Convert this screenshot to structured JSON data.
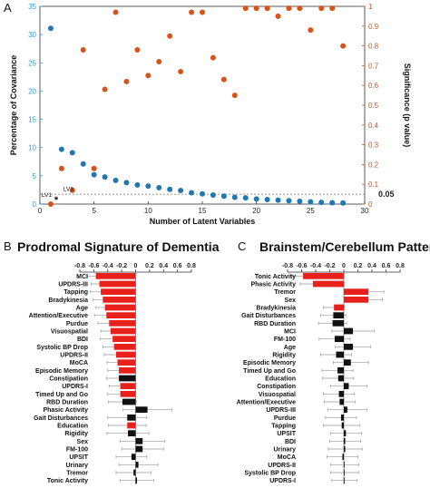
{
  "colors": {
    "blue": "#1f77b4",
    "orange": "#d95319",
    "red": "#e8211d",
    "black": "#111111",
    "orange_axis": "#d95319",
    "blue_axis": "#3a9bd9",
    "errorbar": "#9a9a9a"
  },
  "panels": {
    "a": {
      "letter": "A"
    },
    "b": {
      "letter": "B",
      "title": "Prodromal Signature of Dementia"
    },
    "c": {
      "letter": "C",
      "title": "Brainstem/Cerebellum Pattern"
    }
  },
  "chart_data": [
    {
      "id": "a",
      "type": "scatter",
      "xlabel": "Number of Latent Variables",
      "ylabel_left": "Percentage of Covariance",
      "ylabel_right": "Significance (p value)",
      "xlim": [
        0,
        30
      ],
      "ylim_left": [
        0,
        35
      ],
      "ylim_right": [
        0,
        1
      ],
      "x_ticks": [
        0,
        5,
        10,
        15,
        20,
        25,
        30
      ],
      "y_left_ticks": [
        0,
        5,
        10,
        15,
        20,
        25,
        30,
        35
      ],
      "y_right_ticks": [
        0,
        0.1,
        0.2,
        0.3,
        0.4,
        0.5,
        0.6,
        0.7,
        0.8,
        0.9,
        1
      ],
      "threshold_line": {
        "value": 0.05,
        "label": "0.05"
      },
      "annotations": [
        {
          "text": "LV1",
          "x": 1,
          "y_left": 1
        },
        {
          "text": "LV3",
          "x": 3,
          "y_left": 2
        },
        {
          "text": "*",
          "x": 1,
          "y_left": 1
        }
      ],
      "series": [
        {
          "axis": "left",
          "color": "blue",
          "x": [
            1,
            2,
            3,
            4,
            5,
            6,
            7,
            8,
            9,
            10,
            11,
            12,
            13,
            14,
            15,
            16,
            17,
            18,
            19,
            20,
            21,
            22,
            23,
            24,
            25,
            26,
            27,
            28
          ],
          "y": [
            31.1,
            9.7,
            9.1,
            7.1,
            5.2,
            4.8,
            4.2,
            3.8,
            3.4,
            3.2,
            2.9,
            2.6,
            2.4,
            2.0,
            1.8,
            1.6,
            1.4,
            1.2,
            1.1,
            0.9,
            0.8,
            0.7,
            0.6,
            0.5,
            0.4,
            0.3,
            0.25,
            0.2
          ]
        },
        {
          "axis": "right",
          "color": "orange",
          "x": [
            1,
            2,
            3,
            4,
            5,
            6,
            7,
            8,
            9,
            10,
            11,
            12,
            13,
            14,
            15,
            16,
            17,
            18,
            19,
            20,
            21,
            22,
            23,
            24,
            25,
            26,
            27,
            28
          ],
          "y": [
            0.0,
            0.18,
            0.07,
            0.78,
            0.18,
            0.58,
            0.97,
            0.62,
            0.78,
            0.65,
            0.72,
            0.85,
            0.67,
            0.97,
            0.97,
            0.74,
            0.63,
            0.55,
            0.99,
            0.99,
            0.99,
            0.95,
            0.99,
            0.99,
            0.88,
            0.99,
            0.99,
            0.8
          ]
        }
      ]
    },
    {
      "id": "b",
      "type": "bar",
      "orientation": "horizontal",
      "title": "Prodromal Signature of Dementia",
      "xlim": [
        -0.8,
        0.8
      ],
      "x_ticks": [
        "-0.8",
        "-0.6",
        "-0.4",
        "-0.2",
        "0",
        "0.2",
        "0.4",
        "0.6",
        "0.8"
      ],
      "categories": [
        "MCI",
        "UPDRS-III",
        "Tapping",
        "Bradykinesia",
        "Age",
        "Attention/Executive",
        "Purdue",
        "Visuospatial",
        "BDI",
        "Systolic BP Drop",
        "UPDRS-II",
        "MoCA",
        "Episodic Memory",
        "Constipation",
        "UPDRS-I",
        "Timed Up and Go",
        "RBD Duration",
        "Phasic Activity",
        "Gait Disturbances",
        "Education",
        "Rigidity",
        "Sex",
        "FM-100",
        "UPSIT",
        "Urinary",
        "Tremor",
        "Tonic Activity"
      ],
      "values": [
        -0.57,
        -0.52,
        -0.5,
        -0.47,
        -0.44,
        -0.42,
        -0.38,
        -0.36,
        -0.33,
        -0.31,
        -0.28,
        -0.26,
        -0.24,
        -0.24,
        -0.22,
        -0.22,
        -0.19,
        0.17,
        -0.12,
        -0.12,
        -0.11,
        0.1,
        0.1,
        -0.06,
        0.04,
        -0.03,
        0.02
      ],
      "errors": [
        0.12,
        0.12,
        0.15,
        0.14,
        0.13,
        0.17,
        0.16,
        0.14,
        0.18,
        0.16,
        0.17,
        0.15,
        0.16,
        0.18,
        0.16,
        0.18,
        0.2,
        0.35,
        0.28,
        0.27,
        0.3,
        0.32,
        0.3,
        0.22,
        0.28,
        0.25,
        0.24
      ],
      "significant": [
        true,
        true,
        true,
        true,
        true,
        true,
        true,
        true,
        true,
        true,
        true,
        true,
        true,
        false,
        true,
        true,
        false,
        false,
        false,
        true,
        false,
        false,
        false,
        false,
        false,
        false,
        false
      ]
    },
    {
      "id": "c",
      "type": "bar",
      "orientation": "horizontal",
      "title": "Brainstem/Cerebellum Pattern",
      "xlim": [
        -0.8,
        0.8
      ],
      "x_ticks": [
        "-0.8",
        "-0.6",
        "-0.4",
        "-0.2",
        "0",
        "0.2",
        "0.4",
        "0.6",
        "0.8"
      ],
      "categories": [
        "Tonic Activity",
        "Phasic Activity",
        "Tremor",
        "Sex",
        "Bradykinesia",
        "Gait Disturbances",
        "RBD Duration",
        "MCI",
        "FM-100",
        "Age",
        "Rigidity",
        "Episodic Memory",
        "Timed Up and Go",
        "Education",
        "Constipation",
        "Visuospatial",
        "Attention/Executive",
        "UPDRS-III",
        "Purdue",
        "Tapping",
        "UPSIT",
        "BDI",
        "Urinary",
        "MoCA",
        "UPDRS-II",
        "Systolic BP Drop",
        "UPDRS-I"
      ],
      "values": [
        -0.58,
        -0.44,
        0.35,
        0.35,
        -0.14,
        -0.15,
        -0.16,
        0.13,
        -0.13,
        0.13,
        -0.11,
        0.1,
        -0.09,
        -0.08,
        0.07,
        -0.07,
        -0.06,
        0.05,
        -0.04,
        -0.03,
        0.03,
        0.02,
        0.02,
        -0.02,
        0.01,
        0.01,
        0.01
      ],
      "errors": [
        0.16,
        0.18,
        0.22,
        0.2,
        0.15,
        0.18,
        0.2,
        0.3,
        0.22,
        0.25,
        0.22,
        0.25,
        0.22,
        0.22,
        0.26,
        0.22,
        0.22,
        0.28,
        0.22,
        0.26,
        0.22,
        0.22,
        0.24,
        0.22,
        0.2,
        0.2,
        0.18
      ],
      "significant": [
        true,
        true,
        true,
        true,
        true,
        false,
        false,
        false,
        false,
        false,
        false,
        false,
        false,
        false,
        false,
        false,
        false,
        false,
        false,
        false,
        false,
        false,
        false,
        false,
        false,
        false,
        false
      ]
    }
  ]
}
